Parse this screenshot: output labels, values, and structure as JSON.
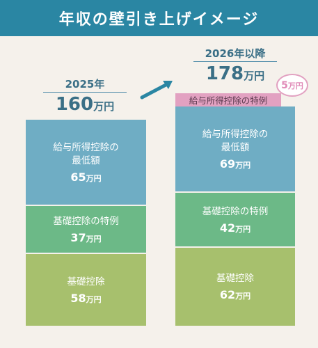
{
  "title": "年収の壁引き上げイメージ",
  "left": {
    "year": "2025年",
    "total_num": "160",
    "total_unit": "万円",
    "segments": [
      {
        "label1": "給与所得控除の",
        "label2": "最低額",
        "num": "65",
        "unit": "万円"
      },
      {
        "label1": "基礎控除の特例",
        "label2": "",
        "num": "37",
        "unit": "万円"
      },
      {
        "label1": "基礎控除",
        "label2": "",
        "num": "58",
        "unit": "万円"
      }
    ]
  },
  "right": {
    "year": "2026年以降",
    "total_num": "178",
    "total_unit": "万円",
    "extra_label": "給与所得控除の特例",
    "extra_num": "5",
    "extra_unit": "万円",
    "segments": [
      {
        "label1": "給与所得控除の",
        "label2": "最低額",
        "num": "69",
        "unit": "万円"
      },
      {
        "label1": "基礎控除の特例",
        "label2": "",
        "num": "42",
        "unit": "万円"
      },
      {
        "label1": "基礎控除",
        "label2": "",
        "num": "62",
        "unit": "万円"
      }
    ]
  },
  "colors": {
    "header": "#2a86a3",
    "salary": "#6fadc4",
    "special": "#6cb987",
    "basic": "#a7c06d",
    "extra": "#e2a1c1"
  }
}
